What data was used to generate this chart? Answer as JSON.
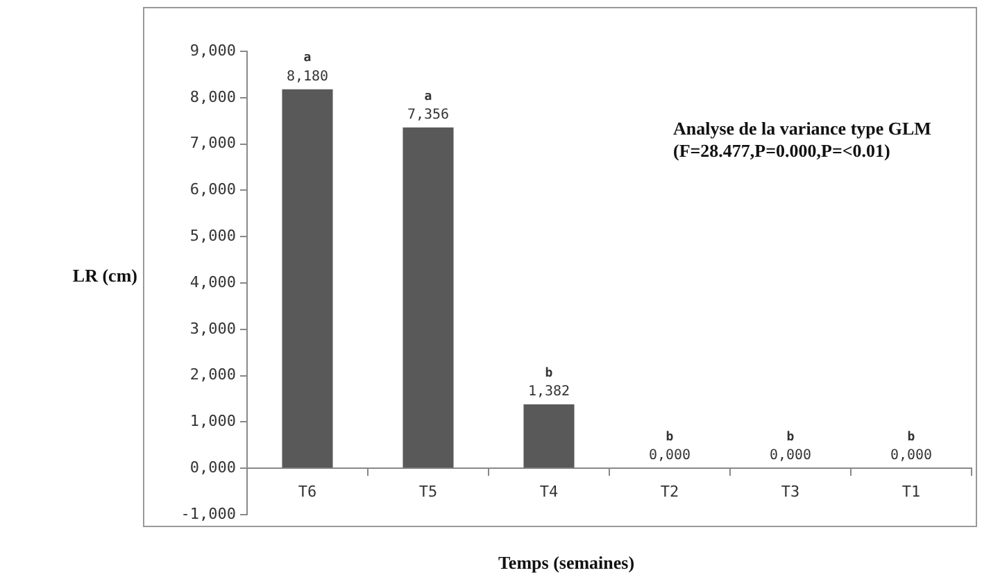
{
  "chart_data": {
    "type": "bar",
    "xlabel": "Temps (semaines)",
    "ylabel": "LR (cm)",
    "categories": [
      "T6",
      "T5",
      "T4",
      "T2",
      "T3",
      "T1"
    ],
    "values": [
      8.18,
      7.356,
      1.382,
      0,
      0,
      0
    ],
    "value_labels": [
      "8,180",
      "7,356",
      "1,382",
      "0,000",
      "0,000",
      "0,000"
    ],
    "color": "#595959",
    "ylim": [
      -1,
      9
    ],
    "yticks": [
      {
        "value": -1,
        "label": "-1,000"
      },
      {
        "value": 0,
        "label": "0,000"
      },
      {
        "value": 1,
        "label": "1,000"
      },
      {
        "value": 2,
        "label": "2,000"
      },
      {
        "value": 3,
        "label": "3,000"
      },
      {
        "value": 4,
        "label": "4,000"
      },
      {
        "value": 5,
        "label": "5,000"
      },
      {
        "value": 6,
        "label": "6,000"
      },
      {
        "value": 7,
        "label": "7,000"
      },
      {
        "value": 8,
        "label": "8,000"
      },
      {
        "value": 9,
        "label": "9,000"
      }
    ],
    "annotations": [
      "Analyse de la variance type GLM",
      "(F=28.477,P=0.000,P=<0.01)",
      {
        "text": "a",
        "x": "T6",
        "y": 8.18
      },
      {
        "text": "a",
        "x": "T5",
        "y": 7.356
      },
      {
        "text": "b",
        "x": "T4",
        "y": 1.382
      },
      {
        "text": "b",
        "x": "T2",
        "y": 0
      },
      {
        "text": "b",
        "x": "T3",
        "y": 0
      },
      {
        "text": "b",
        "x": "T1",
        "y": 0
      }
    ],
    "grid": false,
    "legend": false
  }
}
